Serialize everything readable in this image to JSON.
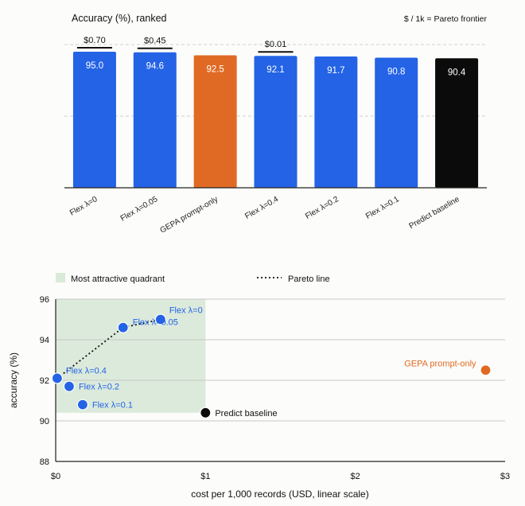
{
  "chart_data": [
    {
      "type": "bar",
      "title": "Accuracy (%), ranked",
      "note": "$ / 1k = Pareto frontier",
      "ylim": [
        0,
        100
      ],
      "grid": true,
      "categories": [
        "Flex λ=0",
        "Flex λ=0.05",
        "GEPA prompt-only",
        "Flex λ=0.4",
        "Flex λ=0.2",
        "Flex λ=0.1",
        "Predict baseline"
      ],
      "values": [
        95.0,
        94.6,
        92.5,
        92.1,
        91.7,
        90.8,
        90.4
      ],
      "value_labels": [
        "95.0",
        "94.6",
        "92.5",
        "92.1",
        "91.7",
        "90.8",
        "90.4"
      ],
      "bar_colors": [
        "#2463e6",
        "#2463e6",
        "#e06a24",
        "#2463e6",
        "#2463e6",
        "#2463e6",
        "#0b0b0b"
      ],
      "pareto_labels": [
        "$0.70",
        "$0.45",
        "",
        "$0.01",
        "",
        "",
        ""
      ]
    },
    {
      "type": "scatter",
      "xlabel": "cost per 1,000 records (USD, linear scale)",
      "ylabel": "accuracy (%)",
      "xlim": [
        0,
        3
      ],
      "ylim": [
        88,
        96
      ],
      "xticks": [
        0,
        1,
        2,
        3
      ],
      "xtick_labels": [
        "$0",
        "$1",
        "$2",
        "$3"
      ],
      "yticks": [
        88,
        90,
        92,
        94,
        96
      ],
      "ytick_labels": [
        "88",
        "90",
        "92",
        "94",
        "96"
      ],
      "grid": true,
      "legend": {
        "quadrant_label": "Most attractive quadrant",
        "pareto_label": "Pareto line",
        "position": "top"
      },
      "quadrant": {
        "x": [
          0,
          1
        ],
        "y": [
          90.4,
          96
        ]
      },
      "points": [
        {
          "label": "Flex λ=0",
          "x": 0.7,
          "y": 95.0,
          "color": "#2463e6"
        },
        {
          "label": "Flex λ=0.05",
          "x": 0.45,
          "y": 94.6,
          "color": "#2463e6"
        },
        {
          "label": "Flex λ=0.4",
          "x": 0.01,
          "y": 92.1,
          "color": "#2463e6"
        },
        {
          "label": "Flex λ=0.2",
          "x": 0.09,
          "y": 91.7,
          "color": "#2463e6"
        },
        {
          "label": "Flex λ=0.1",
          "x": 0.18,
          "y": 90.8,
          "color": "#2463e6"
        },
        {
          "label": "Predict baseline",
          "x": 1.0,
          "y": 90.4,
          "color": "#0b0b0b"
        },
        {
          "label": "GEPA prompt-only",
          "x": 2.87,
          "y": 92.5,
          "color": "#e06a24"
        }
      ],
      "pareto_line": [
        [
          0.01,
          92.1
        ],
        [
          0.45,
          94.6
        ],
        [
          0.7,
          95.0
        ]
      ]
    }
  ]
}
